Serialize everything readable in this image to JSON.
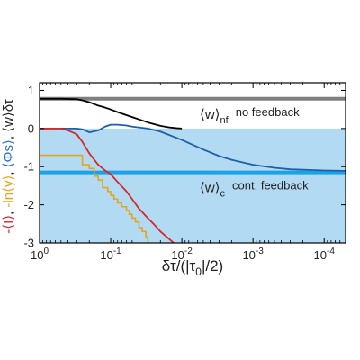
{
  "chart_data": {
    "type": "line",
    "x_scale": "log",
    "x_reversed": true,
    "xlim": [
      1,
      5e-05
    ],
    "ylim": [
      -3,
      1.2
    ],
    "xlabel": "δτ/(|τ0|/2)",
    "xticks": [
      {
        "value": 1,
        "mant": "10",
        "exp": "0"
      },
      {
        "value": 0.1,
        "mant": "10",
        "exp": "-1"
      },
      {
        "value": 0.01,
        "mant": "10",
        "exp": "-2"
      },
      {
        "value": 0.001,
        "mant": "10",
        "exp": "-3"
      },
      {
        "value": 0.0001,
        "mant": "10",
        "exp": "-4"
      }
    ],
    "yticks": [
      1,
      0,
      -1,
      -2,
      -3
    ],
    "ylabel_parts": [
      {
        "text": "-⟨I⟩",
        "color": "#d62728"
      },
      {
        "text": ", ",
        "color": "#222222"
      },
      {
        "text": "-ln⟨γ⟩",
        "color": "#e8a317"
      },
      {
        "text": ", ",
        "color": "#222222"
      },
      {
        "text": "⟨Φs⟩",
        "color": "#1f6fd1"
      },
      {
        "text": ", ",
        "color": "#222222"
      },
      {
        "text": "⟨w⟩δτ",
        "color": "#222222"
      }
    ],
    "shaded_region": {
      "y_from": -3,
      "y_to": 0,
      "color": "#b3daf3"
    },
    "hlines": [
      {
        "name": "no feedback",
        "y": 0.78,
        "color": "#7f7f7f"
      },
      {
        "name": "cont. feedback",
        "y": -1.15,
        "color": "#1aa3e8"
      }
    ],
    "annotations": [
      {
        "text": "⟨w⟩",
        "sub": "nf",
        "rest": "no feedback"
      },
      {
        "text": "⟨w⟩",
        "sub": "c",
        "rest": "cont. feedback"
      }
    ],
    "series": [
      {
        "color": "#000000",
        "x": [
          1,
          0.5,
          0.3,
          0.25,
          0.2,
          0.15,
          0.12,
          0.1,
          0.08,
          0.06,
          0.05,
          0.04,
          0.03,
          0.02,
          0.015,
          0.012,
          0.01
        ],
        "y": [
          0.78,
          0.78,
          0.77,
          0.74,
          0.69,
          0.6,
          0.55,
          0.5,
          0.43,
          0.35,
          0.3,
          0.24,
          0.16,
          0.07,
          0.03,
          0.01,
          0
        ]
      },
      {
        "color": "#1f5fa8",
        "x": [
          1,
          0.5,
          0.3,
          0.25,
          0.2,
          0.15,
          0.12,
          0.1,
          0.08,
          0.06,
          0.05,
          0.03,
          0.02,
          0.01,
          0.005,
          0.003,
          0.002,
          0.001,
          0.0005,
          0.0003,
          0.0002,
          0.0001,
          5e-05
        ],
        "y": [
          0,
          0,
          0,
          -0.02,
          -0.1,
          -0.05,
          0.05,
          0.1,
          0.1,
          0.08,
          0.05,
          0,
          -0.08,
          -0.3,
          -0.55,
          -0.72,
          -0.82,
          -0.95,
          -1.03,
          -1.07,
          -1.08,
          -1.1,
          -1.11
        ]
      },
      {
        "color": "#d62728",
        "x": [
          1,
          0.5,
          0.4,
          0.3,
          0.25,
          0.2,
          0.15,
          0.12,
          0.1,
          0.08,
          0.06,
          0.05,
          0.04,
          0.03,
          0.025,
          0.02,
          0.015,
          0.013
        ],
        "y": [
          0,
          0,
          -0.05,
          -0.15,
          -0.35,
          -0.65,
          -0.95,
          -1.1,
          -1.2,
          -1.4,
          -1.65,
          -1.85,
          -2.1,
          -2.35,
          -2.5,
          -2.7,
          -2.9,
          -3.0
        ]
      },
      {
        "color": "#e8a317",
        "step": true,
        "x": [
          1,
          0.7,
          0.5,
          0.4,
          0.3,
          0.25,
          0.2,
          0.17,
          0.15,
          0.13,
          0.11,
          0.1,
          0.09,
          0.08,
          0.07,
          0.06,
          0.055,
          0.05,
          0.045,
          0.04,
          0.036,
          0.032,
          0.03
        ],
        "y": [
          -0.7,
          -0.7,
          -0.7,
          -0.7,
          -0.7,
          -0.95,
          -1.05,
          -1.25,
          -1.35,
          -1.55,
          -1.65,
          -1.75,
          -1.85,
          -1.95,
          -2.05,
          -2.15,
          -2.25,
          -2.35,
          -2.45,
          -2.6,
          -2.7,
          -2.85,
          -3.0
        ]
      }
    ]
  }
}
